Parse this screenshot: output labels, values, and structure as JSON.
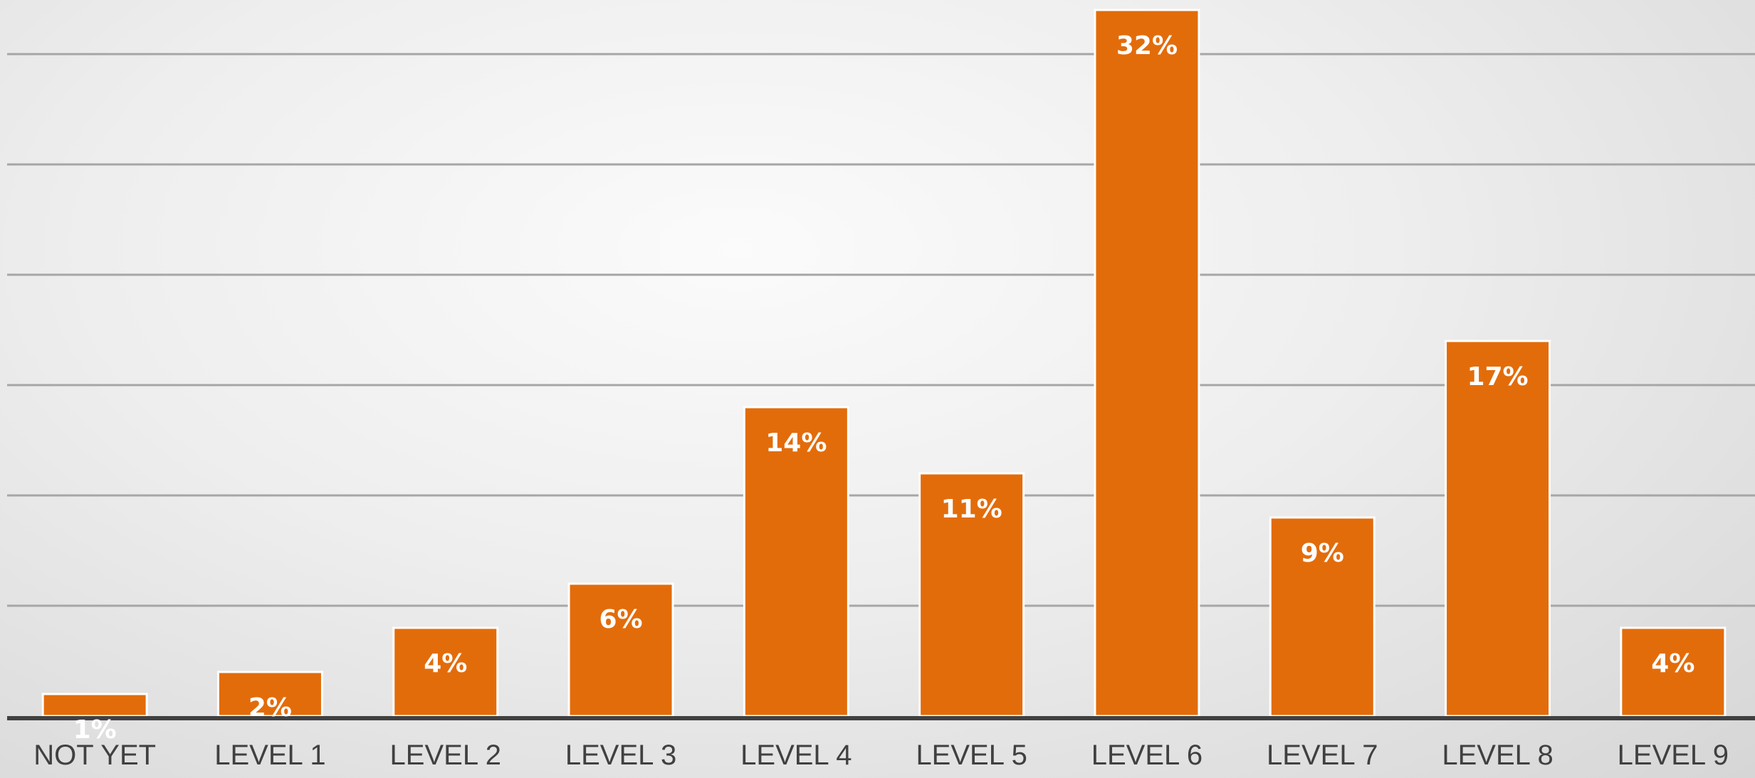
{
  "chart_data": {
    "type": "bar",
    "title": "",
    "xlabel": "",
    "ylabel": "",
    "categories": [
      "NOT YET",
      "LEVEL 1",
      "LEVEL 2",
      "LEVEL 3",
      "LEVEL 4",
      "LEVEL 5",
      "LEVEL 6",
      "LEVEL 7",
      "LEVEL 8",
      "LEVEL 9"
    ],
    "values": [
      1,
      2,
      4,
      6,
      14,
      11,
      32,
      9,
      17,
      4
    ],
    "data_labels": [
      "1%",
      "2%",
      "4%",
      "6%",
      "14%",
      "11%",
      "32%",
      "9%",
      "17%",
      "4%"
    ],
    "ylim": [
      0,
      32
    ],
    "gridline_step": 5,
    "grid": true,
    "legend": "none",
    "bar_color": "#e36c0a",
    "bar_outline_color": "#ffffff",
    "gridline_color": "#a6a6a6",
    "axis_color": "#404040"
  }
}
